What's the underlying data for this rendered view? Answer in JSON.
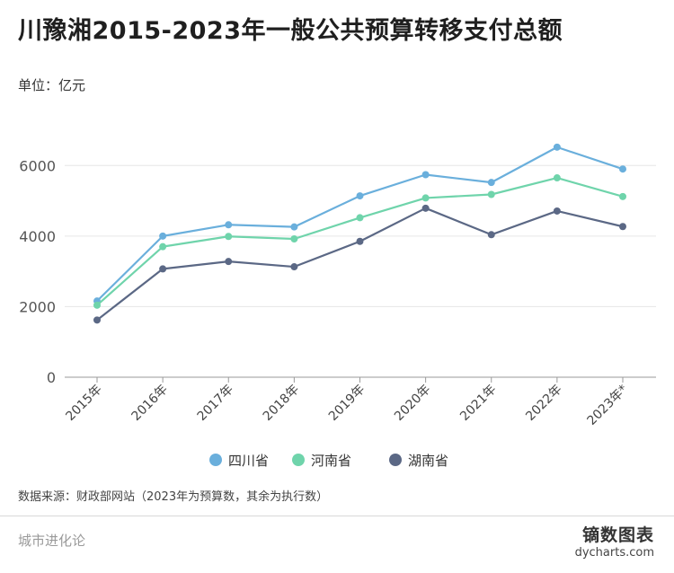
{
  "title": "川豫湘2015-2023年一般公共预算转移支付总额",
  "unit": "单位：亿元",
  "source": "数据来源：财政部网站（2023年为预算数，其余为执行数）",
  "footer": {
    "brand_left": "城市进化论",
    "brand_right": "镝数图表",
    "brand_url": "dycharts.com"
  },
  "colors": {
    "sichuan": "#6aafdc",
    "henan": "#6fd4ab",
    "hunan": "#5b6885",
    "grid": "#e6e6e6",
    "axis": "#9a9a9a"
  },
  "chart_data": {
    "type": "line",
    "categories": [
      "2015年",
      "2016年",
      "2017年",
      "2018年",
      "2019年",
      "2020年",
      "2021年",
      "2022年",
      "2023年*"
    ],
    "series": [
      {
        "name": "四川省",
        "values": [
          2160,
          4000,
          4320,
          4260,
          5140,
          5740,
          5520,
          6520,
          5900
        ]
      },
      {
        "name": "河南省",
        "values": [
          2040,
          3700,
          3990,
          3920,
          4520,
          5080,
          5180,
          5650,
          5120
        ]
      },
      {
        "name": "湖南省",
        "values": [
          1620,
          3070,
          3280,
          3130,
          3850,
          4790,
          4040,
          4710,
          4270
        ]
      }
    ],
    "yticks": [
      0,
      2000,
      4000,
      6000
    ],
    "ylim": [
      0,
      7000
    ],
    "grid": true,
    "legend_position": "bottom"
  }
}
